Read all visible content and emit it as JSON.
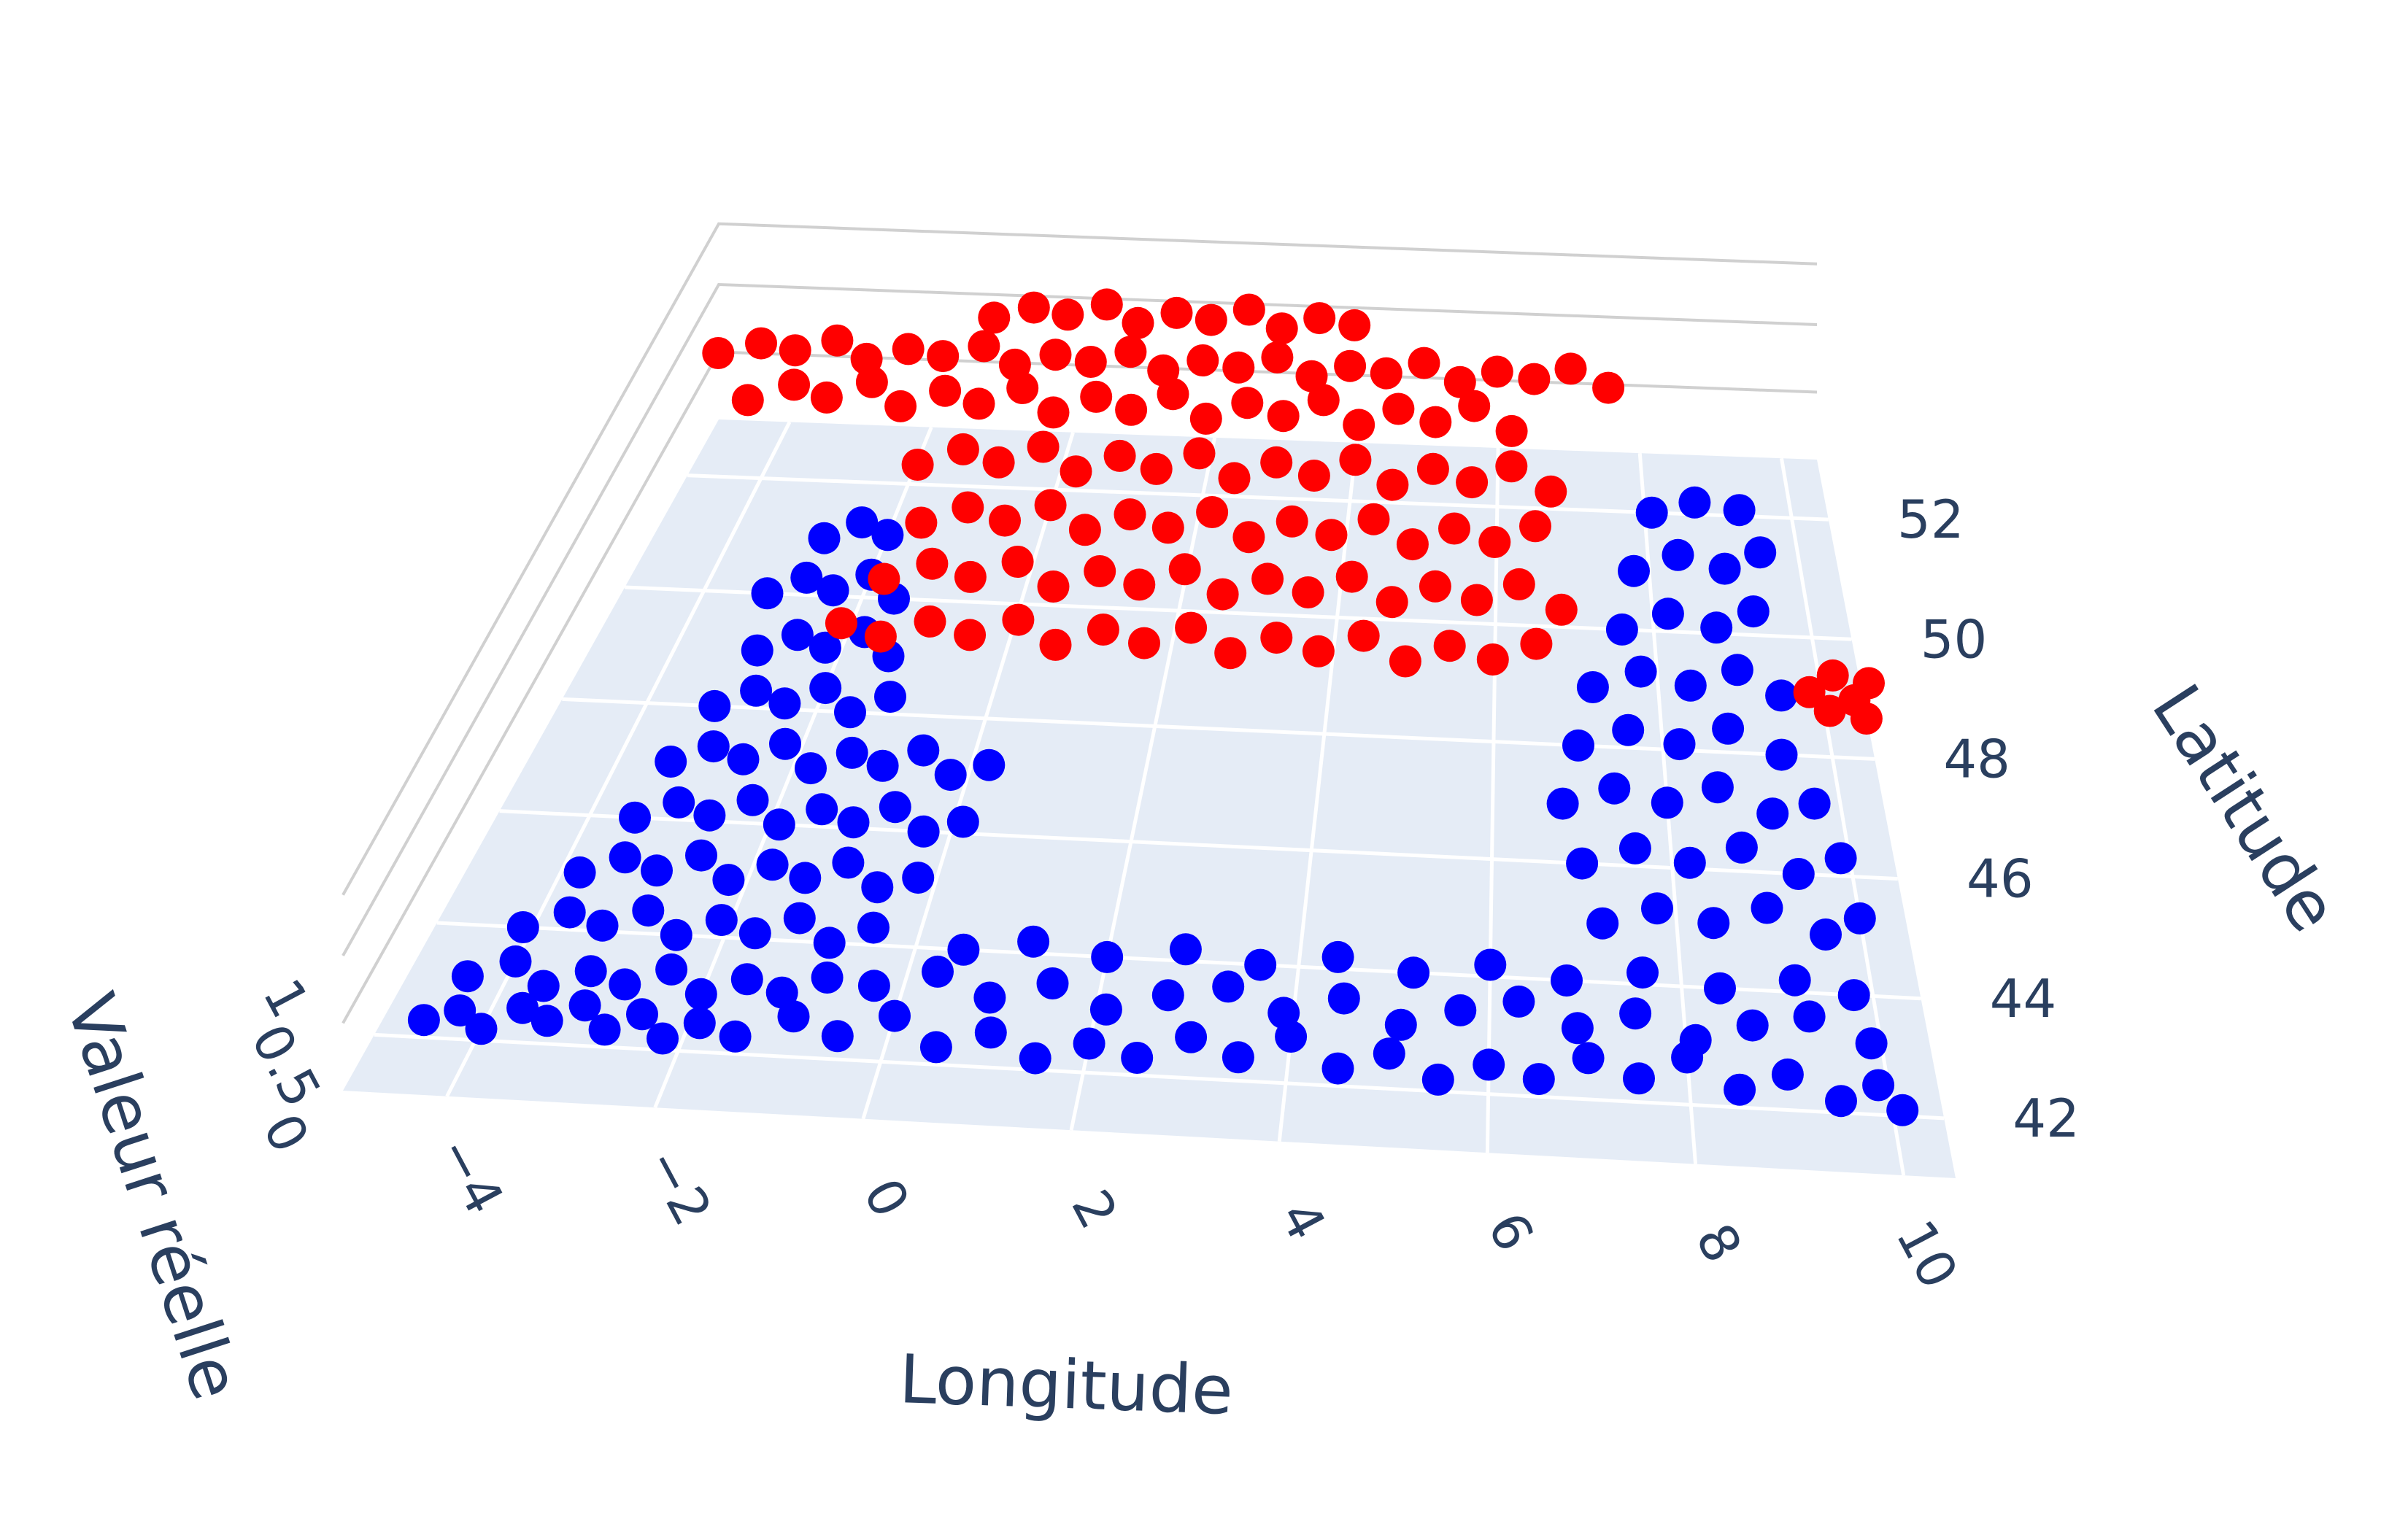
{
  "chart_data": {
    "type": "scatter",
    "subtype": "3d-scatter",
    "title": "",
    "xlabel": "Longitude",
    "ylabel": "Latitude",
    "zlabel": "Valeur réelle",
    "xlim": [
      -5,
      10.5
    ],
    "ylim": [
      41,
      53
    ],
    "zlim": [
      0,
      1
    ],
    "x_ticks": [
      -4,
      -2,
      0,
      2,
      4,
      6,
      8,
      10
    ],
    "y_ticks": [
      42,
      44,
      46,
      48,
      50,
      52
    ],
    "z_ticks": [
      "0",
      "0.5",
      "1"
    ],
    "grid": true,
    "legend": "none",
    "colors": {
      "class_0": "#0000ff",
      "class_1": "#ff0000",
      "floor": "#e5ecf6",
      "grid": "#ffffff",
      "wall_grid": "#d0d0d0"
    },
    "series": [
      {
        "name": "",
        "color": "#0000ff",
        "z": 0,
        "points": [
          [
            -4.6,
            42.3
          ],
          [
            -4.3,
            42.5
          ],
          [
            -4.0,
            42.2
          ],
          [
            -3.7,
            42.6
          ],
          [
            -3.4,
            42.4
          ],
          [
            -3.1,
            42.7
          ],
          [
            -2.8,
            42.3
          ],
          [
            -2.5,
            42.6
          ],
          [
            -2.2,
            42.2
          ],
          [
            -1.9,
            42.5
          ],
          [
            -4.4,
            43.1
          ],
          [
            -4.0,
            43.4
          ],
          [
            -3.6,
            43.0
          ],
          [
            -3.2,
            43.3
          ],
          [
            -2.8,
            43.1
          ],
          [
            -2.4,
            43.4
          ],
          [
            -2.0,
            43.0
          ],
          [
            -1.6,
            43.3
          ],
          [
            -1.2,
            43.1
          ],
          [
            -0.8,
            43.4
          ],
          [
            -4.1,
            44.0
          ],
          [
            -3.7,
            44.3
          ],
          [
            -3.3,
            44.1
          ],
          [
            -2.9,
            44.4
          ],
          [
            -2.5,
            44.0
          ],
          [
            -2.1,
            44.3
          ],
          [
            -1.7,
            44.1
          ],
          [
            -1.3,
            44.4
          ],
          [
            -0.9,
            44.0
          ],
          [
            -0.5,
            44.3
          ],
          [
            -3.8,
            45.0
          ],
          [
            -3.4,
            45.3
          ],
          [
            -3.0,
            45.1
          ],
          [
            -2.6,
            45.4
          ],
          [
            -2.2,
            45.0
          ],
          [
            -1.8,
            45.3
          ],
          [
            -1.4,
            45.1
          ],
          [
            -1.0,
            45.4
          ],
          [
            -0.6,
            45.0
          ],
          [
            -0.2,
            45.2
          ],
          [
            -3.5,
            46.0
          ],
          [
            -3.1,
            46.3
          ],
          [
            -2.7,
            46.1
          ],
          [
            -2.3,
            46.4
          ],
          [
            -1.9,
            46.0
          ],
          [
            -1.5,
            46.3
          ],
          [
            -1.1,
            46.1
          ],
          [
            -0.7,
            46.4
          ],
          [
            -0.3,
            46.0
          ],
          [
            0.1,
            46.2
          ],
          [
            -3.4,
            47.0
          ],
          [
            -3.0,
            47.3
          ],
          [
            -2.6,
            47.1
          ],
          [
            -2.2,
            47.4
          ],
          [
            -1.8,
            47.0
          ],
          [
            -1.4,
            47.3
          ],
          [
            -1.0,
            47.1
          ],
          [
            -0.6,
            47.4
          ],
          [
            -0.2,
            47.0
          ],
          [
            0.2,
            47.2
          ],
          [
            -3.2,
            48.0
          ],
          [
            -2.8,
            48.3
          ],
          [
            -2.4,
            48.1
          ],
          [
            -2.0,
            48.4
          ],
          [
            -1.6,
            48.0
          ],
          [
            -1.2,
            48.3
          ],
          [
            -3.0,
            49.0
          ],
          [
            -2.6,
            49.3
          ],
          [
            -2.2,
            49.1
          ],
          [
            -1.8,
            49.4
          ],
          [
            -1.4,
            49.0
          ],
          [
            -3.2,
            50.0
          ],
          [
            -2.8,
            50.3
          ],
          [
            -2.4,
            50.1
          ],
          [
            -2.0,
            50.4
          ],
          [
            -1.6,
            50.0
          ],
          [
            -2.8,
            51.0
          ],
          [
            -2.4,
            51.3
          ],
          [
            -2.0,
            51.1
          ],
          [
            -1.5,
            42.3
          ],
          [
            -1.0,
            42.7
          ],
          [
            -0.5,
            42.4
          ],
          [
            0.0,
            42.8
          ],
          [
            0.5,
            42.3
          ],
          [
            1.0,
            42.6
          ],
          [
            1.5,
            42.2
          ],
          [
            2.0,
            42.5
          ],
          [
            2.5,
            42.3
          ],
          [
            3.0,
            42.7
          ],
          [
            3.5,
            42.4
          ],
          [
            4.0,
            42.8
          ],
          [
            4.5,
            42.3
          ],
          [
            5.0,
            42.6
          ],
          [
            5.5,
            42.2
          ],
          [
            6.0,
            42.5
          ],
          [
            6.5,
            42.3
          ],
          [
            7.0,
            42.7
          ],
          [
            7.5,
            42.4
          ],
          [
            8.0,
            42.8
          ],
          [
            8.5,
            42.3
          ],
          [
            9.0,
            42.6
          ],
          [
            9.5,
            42.2
          ],
          [
            9.9,
            42.5
          ],
          [
            10.1,
            42.1
          ],
          [
            -0.3,
            43.3
          ],
          [
            0.3,
            43.6
          ],
          [
            0.9,
            43.2
          ],
          [
            1.5,
            43.5
          ],
          [
            2.1,
            43.1
          ],
          [
            2.7,
            43.4
          ],
          [
            3.3,
            43.6
          ],
          [
            3.9,
            43.2
          ],
          [
            4.5,
            43.5
          ],
          [
            5.1,
            43.1
          ],
          [
            5.7,
            43.4
          ],
          [
            6.3,
            43.6
          ],
          [
            6.9,
            43.2
          ],
          [
            7.5,
            43.5
          ],
          [
            8.1,
            43.1
          ],
          [
            8.7,
            43.4
          ],
          [
            9.3,
            43.6
          ],
          [
            9.9,
            43.2
          ],
          [
            0.5,
            44.0
          ],
          [
            1.2,
            44.2
          ],
          [
            2.0,
            44.0
          ],
          [
            2.8,
            44.2
          ],
          [
            3.6,
            44.0
          ],
          [
            4.4,
            44.2
          ],
          [
            5.2,
            44.0
          ],
          [
            6.0,
            44.2
          ],
          [
            6.8,
            44.0
          ],
          [
            7.6,
            44.2
          ],
          [
            8.4,
            44.0
          ],
          [
            9.2,
            44.2
          ],
          [
            9.8,
            44.0
          ],
          [
            7.2,
            45.0
          ],
          [
            7.8,
            45.3
          ],
          [
            8.4,
            45.1
          ],
          [
            9.0,
            45.4
          ],
          [
            9.6,
            45.0
          ],
          [
            10.0,
            45.3
          ],
          [
            7.0,
            46.0
          ],
          [
            7.6,
            46.3
          ],
          [
            8.2,
            46.1
          ],
          [
            8.8,
            46.4
          ],
          [
            9.4,
            46.0
          ],
          [
            9.9,
            46.3
          ],
          [
            6.8,
            47.0
          ],
          [
            7.4,
            47.3
          ],
          [
            8.0,
            47.1
          ],
          [
            8.6,
            47.4
          ],
          [
            9.2,
            47.0
          ],
          [
            9.7,
            47.2
          ],
          [
            7.0,
            48.0
          ],
          [
            7.6,
            48.3
          ],
          [
            8.2,
            48.1
          ],
          [
            8.8,
            48.4
          ],
          [
            9.4,
            48.0
          ],
          [
            7.2,
            49.0
          ],
          [
            7.8,
            49.3
          ],
          [
            8.4,
            49.1
          ],
          [
            9.0,
            49.4
          ],
          [
            9.5,
            49.0
          ],
          [
            7.6,
            50.0
          ],
          [
            8.2,
            50.3
          ],
          [
            8.8,
            50.1
          ],
          [
            9.3,
            50.4
          ],
          [
            7.8,
            51.0
          ],
          [
            8.4,
            51.3
          ],
          [
            9.0,
            51.1
          ],
          [
            9.5,
            51.4
          ],
          [
            8.1,
            52.0
          ],
          [
            8.7,
            52.2
          ],
          [
            9.3,
            52.1
          ]
        ]
      },
      {
        "name": "",
        "color": "#ff0000",
        "z": 1,
        "points": [
          [
            -1.5,
            47.2
          ],
          [
            -1.0,
            47.0
          ],
          [
            -0.5,
            47.3
          ],
          [
            0.0,
            47.1
          ],
          [
            0.5,
            47.4
          ],
          [
            1.0,
            47.0
          ],
          [
            1.5,
            47.3
          ],
          [
            2.0,
            47.1
          ],
          [
            2.5,
            47.4
          ],
          [
            3.0,
            47.0
          ],
          [
            3.5,
            47.3
          ],
          [
            4.0,
            47.1
          ],
          [
            4.5,
            47.4
          ],
          [
            5.0,
            47.0
          ],
          [
            5.5,
            47.3
          ],
          [
            6.0,
            47.1
          ],
          [
            6.5,
            47.4
          ],
          [
            -1.2,
            48.0
          ],
          [
            -0.7,
            48.3
          ],
          [
            -0.2,
            48.1
          ],
          [
            0.3,
            48.4
          ],
          [
            0.8,
            48.0
          ],
          [
            1.3,
            48.3
          ],
          [
            1.8,
            48.1
          ],
          [
            2.3,
            48.4
          ],
          [
            2.8,
            48.0
          ],
          [
            3.3,
            48.3
          ],
          [
            3.8,
            48.1
          ],
          [
            4.3,
            48.4
          ],
          [
            4.8,
            48.0
          ],
          [
            5.3,
            48.3
          ],
          [
            5.8,
            48.1
          ],
          [
            6.3,
            48.4
          ],
          [
            6.8,
            48.0
          ],
          [
            -1.0,
            49.0
          ],
          [
            -0.5,
            49.3
          ],
          [
            0.0,
            49.1
          ],
          [
            0.5,
            49.4
          ],
          [
            1.0,
            49.0
          ],
          [
            1.5,
            49.3
          ],
          [
            2.0,
            49.1
          ],
          [
            2.5,
            49.4
          ],
          [
            3.0,
            49.0
          ],
          [
            3.5,
            49.3
          ],
          [
            4.0,
            49.1
          ],
          [
            4.5,
            49.4
          ],
          [
            5.0,
            49.0
          ],
          [
            5.5,
            49.3
          ],
          [
            6.0,
            49.1
          ],
          [
            6.5,
            49.4
          ],
          [
            -1.3,
            50.0
          ],
          [
            -0.8,
            50.3
          ],
          [
            -0.3,
            50.1
          ],
          [
            0.2,
            50.4
          ],
          [
            0.7,
            50.0
          ],
          [
            1.2,
            50.3
          ],
          [
            1.7,
            50.1
          ],
          [
            2.2,
            50.4
          ],
          [
            2.7,
            50.0
          ],
          [
            3.2,
            50.3
          ],
          [
            3.7,
            50.1
          ],
          [
            4.2,
            50.4
          ],
          [
            4.7,
            50.0
          ],
          [
            5.2,
            50.3
          ],
          [
            5.7,
            50.1
          ],
          [
            6.2,
            50.4
          ],
          [
            6.7,
            50.0
          ],
          [
            -3.8,
            51.0
          ],
          [
            -3.3,
            51.3
          ],
          [
            -2.8,
            51.1
          ],
          [
            -2.3,
            51.4
          ],
          [
            -1.8,
            51.0
          ],
          [
            -1.3,
            51.3
          ],
          [
            -0.8,
            51.1
          ],
          [
            -0.3,
            51.4
          ],
          [
            0.2,
            51.0
          ],
          [
            0.7,
            51.3
          ],
          [
            1.2,
            51.1
          ],
          [
            1.7,
            51.4
          ],
          [
            2.2,
            51.0
          ],
          [
            2.7,
            51.3
          ],
          [
            3.2,
            51.1
          ],
          [
            3.7,
            51.4
          ],
          [
            4.2,
            51.0
          ],
          [
            4.7,
            51.3
          ],
          [
            5.2,
            51.1
          ],
          [
            5.7,
            51.4
          ],
          [
            6.2,
            51.0
          ],
          [
            -4.5,
            51.8
          ],
          [
            -4.0,
            52.0
          ],
          [
            -3.5,
            51.9
          ],
          [
            -3.0,
            52.1
          ],
          [
            -2.5,
            51.8
          ],
          [
            -2.0,
            52.0
          ],
          [
            -1.5,
            51.9
          ],
          [
            -1.0,
            52.1
          ],
          [
            -0.5,
            51.8
          ],
          [
            0.0,
            52.0
          ],
          [
            0.5,
            51.9
          ],
          [
            1.0,
            52.1
          ],
          [
            1.5,
            51.8
          ],
          [
            2.0,
            52.0
          ],
          [
            2.5,
            51.9
          ],
          [
            3.0,
            52.1
          ],
          [
            3.5,
            51.8
          ],
          [
            4.0,
            52.0
          ],
          [
            4.5,
            51.9
          ],
          [
            5.0,
            52.1
          ],
          [
            5.5,
            51.8
          ],
          [
            6.0,
            52.0
          ],
          [
            6.5,
            51.9
          ],
          [
            7.0,
            52.1
          ],
          [
            7.5,
            51.8
          ],
          [
            -1.0,
            52.6
          ],
          [
            -0.5,
            52.8
          ],
          [
            0.0,
            52.7
          ],
          [
            0.5,
            52.9
          ],
          [
            1.0,
            52.6
          ],
          [
            1.5,
            52.8
          ],
          [
            2.0,
            52.7
          ],
          [
            2.5,
            52.9
          ],
          [
            3.0,
            52.6
          ],
          [
            3.5,
            52.8
          ],
          [
            4.0,
            52.7
          ],
          [
            9.6,
            46.8
          ],
          [
            9.9,
            47.1
          ],
          [
            10.1,
            46.7
          ],
          [
            10.3,
            47.0
          ],
          [
            9.8,
            46.5
          ],
          [
            10.2,
            46.4
          ]
        ]
      }
    ]
  }
}
